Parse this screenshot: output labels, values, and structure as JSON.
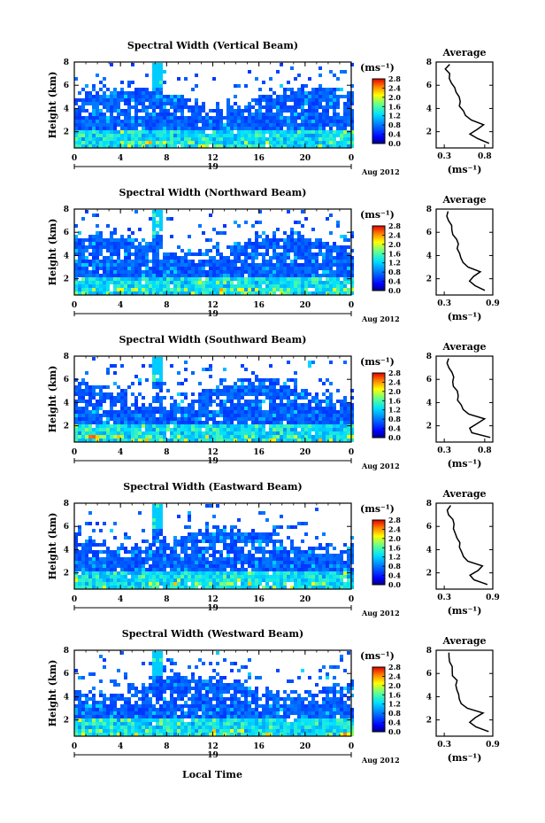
{
  "figure": {
    "footer_label": "Local Time",
    "day_label": "19",
    "month_label": "Aug 2012",
    "unit_label": "(ms⁻¹)",
    "profile_unit_label": "(ms⁻¹)",
    "average_title": "Average",
    "height_axis_label": "Height (km)"
  },
  "chart_data": [
    {
      "type": "heatmap",
      "title": "Spectral Width (Vertical Beam)",
      "x_ticks": [
        "0",
        "4",
        "8",
        "12",
        "16",
        "20",
        "0"
      ],
      "y_ticks": [
        "2",
        "4",
        "6",
        "8"
      ],
      "xlim": [
        0,
        24
      ],
      "ylim": [
        0.6,
        8
      ],
      "colorbar": {
        "label": "(ms⁻¹)",
        "ticks": [
          "2.8",
          "2.4",
          "2.0",
          "1.6",
          "1.2",
          "0.8",
          "0.4",
          "0.0"
        ],
        "range": [
          0,
          2.8
        ]
      },
      "profile": {
        "title": "Average",
        "xlabel": "(ms⁻¹)",
        "x_ticks": [
          "0.3",
          "0.8"
        ],
        "xlim": [
          0.2,
          0.9
        ],
        "ylim": [
          0.6,
          8
        ],
        "heights": [
          1,
          1.4,
          1.8,
          2.2,
          2.6,
          3,
          3.4,
          3.8,
          4.2,
          4.6,
          5,
          5.4,
          5.8,
          6.2,
          6.6,
          7,
          7.4,
          7.8
        ],
        "values": [
          0.85,
          0.72,
          0.62,
          0.7,
          0.78,
          0.62,
          0.55,
          0.52,
          0.5,
          0.48,
          0.47,
          0.44,
          0.42,
          0.4,
          0.38,
          0.36,
          0.33,
          0.36
        ]
      }
    },
    {
      "type": "heatmap",
      "title": "Spectral Width (Northward Beam)",
      "x_ticks": [
        "0",
        "4",
        "8",
        "12",
        "16",
        "20",
        "0"
      ],
      "y_ticks": [
        "2",
        "4",
        "6",
        "8"
      ],
      "xlim": [
        0,
        24
      ],
      "ylim": [
        0.6,
        8
      ],
      "colorbar": {
        "label": "(ms⁻¹)",
        "ticks": [
          "2.8",
          "2.4",
          "2.0",
          "1.6",
          "1.2",
          "0.8",
          "0.4",
          "0.0"
        ],
        "range": [
          0,
          2.8
        ]
      },
      "profile": {
        "title": "Average",
        "xlabel": "(ms⁻¹)",
        "x_ticks": [
          "0.3",
          "0.9"
        ],
        "xlim": [
          0.2,
          0.9
        ],
        "ylim": [
          0.6,
          8
        ],
        "heights": [
          1,
          1.4,
          1.8,
          2.2,
          2.6,
          3,
          3.4,
          3.8,
          4.2,
          4.6,
          5,
          5.4,
          5.8,
          6.2,
          6.6,
          7,
          7.4,
          7.8
        ],
        "values": [
          0.8,
          0.68,
          0.6,
          0.66,
          0.74,
          0.58,
          0.52,
          0.5,
          0.48,
          0.46,
          0.46,
          0.44,
          0.42,
          0.41,
          0.38,
          0.37,
          0.34,
          0.36
        ]
      }
    },
    {
      "type": "heatmap",
      "title": "Spectral Width (Southward Beam)",
      "x_ticks": [
        "0",
        "4",
        "8",
        "12",
        "16",
        "20",
        "0"
      ],
      "y_ticks": [
        "2",
        "4",
        "6",
        "8"
      ],
      "xlim": [
        0,
        24
      ],
      "ylim": [
        0.6,
        8
      ],
      "colorbar": {
        "label": "(ms⁻¹)",
        "ticks": [
          "2.8",
          "2.4",
          "2.0",
          "1.6",
          "1.2",
          "0.8",
          "0.4",
          "0.0"
        ],
        "range": [
          0,
          2.8
        ]
      },
      "profile": {
        "title": "Average",
        "xlabel": "(ms⁻¹)",
        "x_ticks": [
          "0.3",
          "0.8"
        ],
        "xlim": [
          0.2,
          0.9
        ],
        "ylim": [
          0.6,
          8
        ],
        "heights": [
          1,
          1.4,
          1.8,
          2.2,
          2.6,
          3,
          3.4,
          3.8,
          4.2,
          4.6,
          5,
          5.4,
          5.8,
          6.2,
          6.6,
          7,
          7.4,
          7.8
        ],
        "values": [
          0.88,
          0.66,
          0.6,
          0.72,
          0.8,
          0.6,
          0.55,
          0.5,
          0.48,
          0.47,
          0.45,
          0.43,
          0.42,
          0.4,
          0.38,
          0.36,
          0.34,
          0.37
        ]
      }
    },
    {
      "type": "heatmap",
      "title": "Spectral Width (Eastward Beam)",
      "x_ticks": [
        "0",
        "4",
        "8",
        "12",
        "16",
        "20",
        "0"
      ],
      "y_ticks": [
        "2",
        "4",
        "6",
        "8"
      ],
      "xlim": [
        0,
        24
      ],
      "ylim": [
        0.6,
        8
      ],
      "colorbar": {
        "label": "(ms⁻¹)",
        "ticks": [
          "2.8",
          "2.4",
          "2.0",
          "1.6",
          "1.2",
          "0.8",
          "0.4",
          "0.0"
        ],
        "range": [
          0,
          2.8
        ]
      },
      "profile": {
        "title": "Average",
        "xlabel": "(ms⁻¹)",
        "x_ticks": [
          "0.3",
          "0.9"
        ],
        "xlim": [
          0.2,
          0.9
        ],
        "ylim": [
          0.6,
          8
        ],
        "heights": [
          1,
          1.4,
          1.8,
          2.2,
          2.6,
          3,
          3.4,
          3.8,
          4.2,
          4.6,
          5,
          5.4,
          5.8,
          6.2,
          6.6,
          7,
          7.4,
          7.8
        ],
        "values": [
          0.82,
          0.68,
          0.62,
          0.7,
          0.76,
          0.6,
          0.54,
          0.52,
          0.5,
          0.48,
          0.46,
          0.45,
          0.43,
          0.41,
          0.39,
          0.37,
          0.35,
          0.37
        ]
      }
    },
    {
      "type": "heatmap",
      "title": "Spectral Width (Westward Beam)",
      "x_ticks": [
        "0",
        "4",
        "8",
        "12",
        "16",
        "20",
        "0"
      ],
      "y_ticks": [
        "2",
        "4",
        "6",
        "8"
      ],
      "xlim": [
        0,
        24
      ],
      "ylim": [
        0.6,
        8
      ],
      "colorbar": {
        "label": "(ms⁻¹)",
        "ticks": [
          "2.8",
          "2.4",
          "2.0",
          "1.6",
          "1.2",
          "0.8",
          "0.4",
          "0.0"
        ],
        "range": [
          0,
          2.8
        ]
      },
      "profile": {
        "title": "Average",
        "xlabel": "(ms⁻¹)",
        "x_ticks": [
          "0.3",
          "0.9"
        ],
        "xlim": [
          0.2,
          0.9
        ],
        "ylim": [
          0.6,
          8
        ],
        "heights": [
          1,
          1.4,
          1.8,
          2.2,
          2.6,
          3,
          3.4,
          3.8,
          4.2,
          4.6,
          5,
          5.4,
          5.8,
          6.2,
          6.6,
          7,
          7.4,
          7.8
        ],
        "values": [
          0.84,
          0.7,
          0.6,
          0.68,
          0.78,
          0.6,
          0.53,
          0.5,
          0.49,
          0.47,
          0.45,
          0.44,
          0.42,
          0.4,
          0.38,
          0.36,
          0.34,
          0.36
        ]
      }
    }
  ]
}
